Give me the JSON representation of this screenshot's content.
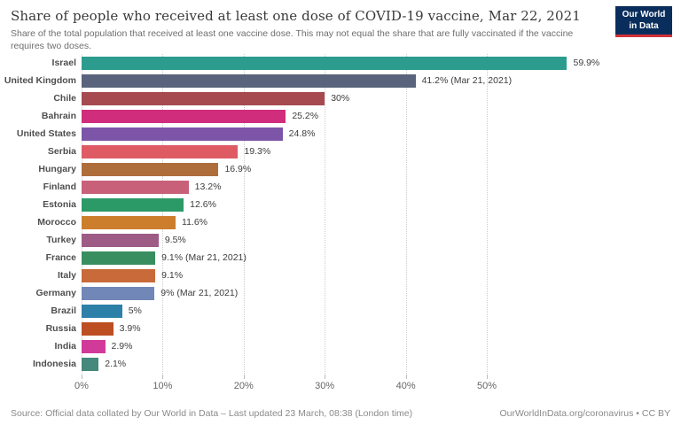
{
  "header": {
    "title": "Share of people who received at least one dose of COVID-19 vaccine, Mar 22, 2021",
    "subtitle": "Share of the total population that received at least one vaccine dose. This may not equal the share that are fully vaccinated if the vaccine requires two doses.",
    "logo": {
      "line1": "Our World",
      "line2": "in Data",
      "bg_color": "#0a2e5c",
      "accent_color": "#d13239"
    }
  },
  "chart_data": {
    "type": "bar",
    "orientation": "horizontal",
    "title": "Share of people who received at least one dose of COVID-19 vaccine, Mar 22, 2021",
    "xlabel": "",
    "ylabel": "",
    "xlim": [
      0,
      60
    ],
    "grid": "dotted-vertical",
    "legend": "none",
    "categories": [
      "Israel",
      "United Kingdom",
      "Chile",
      "Bahrain",
      "United States",
      "Serbia",
      "Hungary",
      "Finland",
      "Estonia",
      "Morocco",
      "Turkey",
      "France",
      "Italy",
      "Germany",
      "Brazil",
      "Russia",
      "India",
      "Indonesia"
    ],
    "values": [
      59.9,
      41.2,
      30,
      25.2,
      24.8,
      19.3,
      16.9,
      13.2,
      12.6,
      11.6,
      9.5,
      9.1,
      9.1,
      9,
      5,
      3.9,
      2.9,
      2.1
    ],
    "value_labels": [
      "59.9%",
      "41.2% (Mar 21, 2021)",
      "30%",
      "25.2%",
      "24.8%",
      "19.3%",
      "16.9%",
      "13.2%",
      "12.6%",
      "11.6%",
      "9.5%",
      "9.1% (Mar 21, 2021)",
      "9.1%",
      "9% (Mar 21, 2021)",
      "5%",
      "3.9%",
      "2.9%",
      "2.1%"
    ],
    "colors": [
      "#2b9c8e",
      "#59637c",
      "#a64a50",
      "#d02d7d",
      "#7d55a8",
      "#de5b63",
      "#ae6e3c",
      "#c9607a",
      "#2c9a67",
      "#cc7e2d",
      "#9d5b85",
      "#398e60",
      "#c96a3a",
      "#7187b8",
      "#2d80a8",
      "#bd4e22",
      "#d23a9a",
      "#44897b"
    ],
    "x_tick_values": [
      0,
      10,
      20,
      30,
      40,
      50
    ],
    "x_tick_labels": [
      "0%",
      "10%",
      "20%",
      "30%",
      "40%",
      "50%"
    ]
  },
  "footer": {
    "source": "Source: Official data collated by Our World in Data – Last updated 23 March, 08:38 (London time)",
    "link": "OurWorldInData.org/coronavirus • CC BY"
  }
}
